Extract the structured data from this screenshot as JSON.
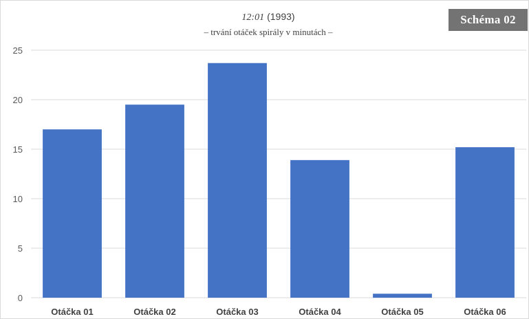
{
  "badge": "Schéma 02",
  "chart_data": {
    "type": "bar",
    "title_italic": "12:01",
    "title_rest": "(1993)",
    "subtitle": "– trvání otáček spirály v minutách –",
    "categories": [
      "Otáčka 01",
      "Otáčka 02",
      "Otáčka 03",
      "Otáčka 04",
      "Otáčka 05",
      "Otáčka 06"
    ],
    "values": [
      17.0,
      19.5,
      23.7,
      13.9,
      0.4,
      15.2
    ],
    "ylim": [
      0,
      25
    ],
    "yticks": [
      0,
      5,
      10,
      15,
      20,
      25
    ],
    "grid": true,
    "bar_color": "#4472c4",
    "grid_color": "#d9d9d9"
  }
}
